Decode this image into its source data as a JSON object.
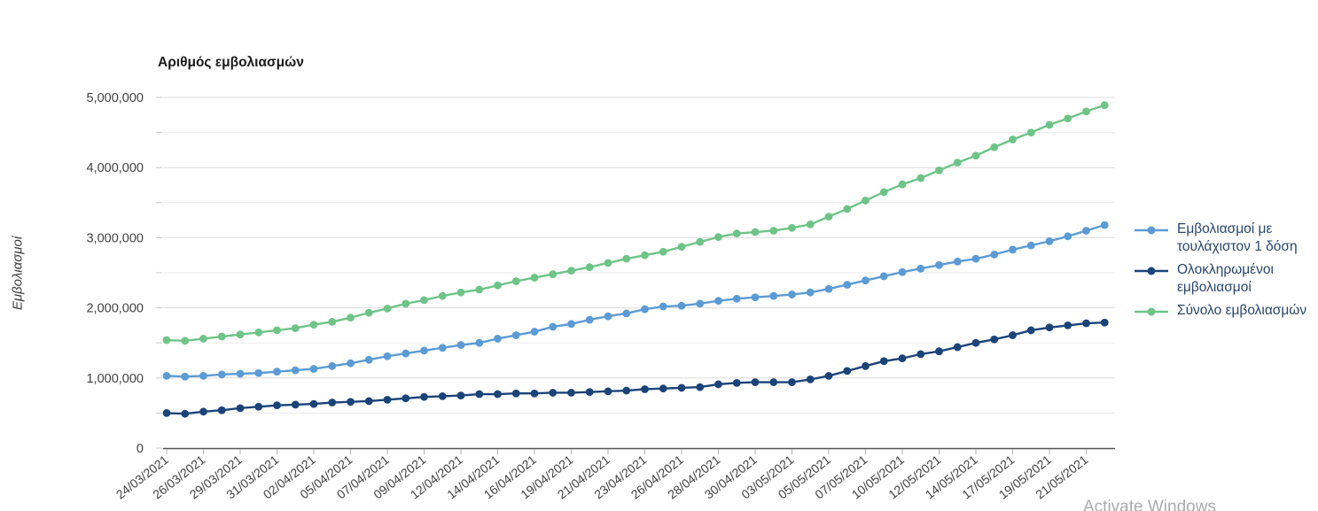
{
  "chart": {
    "title": "Αριθμός εμβολιασμών",
    "y_axis_title": "Εμβολιασμοί",
    "watermark": "Activate Windows"
  },
  "legend": {
    "items": [
      {
        "key": "at_least_one_dose",
        "label": "Εμβολιασμοί με τουλάχιστον 1 δόση",
        "color": "#5b9bd5"
      },
      {
        "key": "completed",
        "label": "Ολοκληρωμένοι εμβολιασμοί",
        "color": "#1a4379"
      },
      {
        "key": "total",
        "label": "Σύνολο εμβολιασμών",
        "color": "#6ec487"
      }
    ]
  },
  "chart_data": {
    "type": "line",
    "title": "Αριθμός εμβολιασμών",
    "xlabel": "",
    "ylabel": "Εμβολιασμοί",
    "ylim": [
      0,
      5000000
    ],
    "y_major_tick_step": 1000000,
    "y_minor_tick_step": 500000,
    "y_tick_labels": [
      "0",
      "1,000,000",
      "2,000,000",
      "3,000,000",
      "4,000,000",
      "5,000,000"
    ],
    "grid": true,
    "legend_position": "right",
    "markers": "circle",
    "points_per_label": 2,
    "x_tick_labels": [
      "24/03/2021",
      "26/03/2021",
      "29/03/2021",
      "31/03/2021",
      "02/04/2021",
      "05/04/2021",
      "07/04/2021",
      "09/04/2021",
      "12/04/2021",
      "14/04/2021",
      "16/04/2021",
      "19/04/2021",
      "21/04/2021",
      "23/04/2021",
      "26/04/2021",
      "28/04/2021",
      "30/04/2021",
      "03/05/2021",
      "05/05/2021",
      "07/05/2021",
      "10/05/2021",
      "12/05/2021",
      "14/05/2021",
      "17/05/2021",
      "19/05/2021",
      "21/05/2021"
    ],
    "series": [
      {
        "name": "Εμβολιασμοί με τουλάχιστον 1 δόση",
        "key": "at_least_one_dose",
        "color": "#5b9bd5",
        "values": [
          1030000,
          1020000,
          1030000,
          1050000,
          1060000,
          1070000,
          1090000,
          1110000,
          1130000,
          1170000,
          1210000,
          1260000,
          1310000,
          1350000,
          1390000,
          1430000,
          1470000,
          1500000,
          1560000,
          1610000,
          1660000,
          1730000,
          1770000,
          1830000,
          1880000,
          1920000,
          1980000,
          2020000,
          2030000,
          2060000,
          2100000,
          2130000,
          2150000,
          2170000,
          2190000,
          2220000,
          2270000,
          2330000,
          2390000,
          2450000,
          2510000,
          2560000,
          2610000,
          2660000,
          2700000,
          2760000,
          2830000,
          2890000,
          2950000,
          3020000,
          3100000,
          3180000
        ]
      },
      {
        "name": "Ολοκληρωμένοι εμβολιασμοί",
        "key": "completed",
        "color": "#1a4379",
        "values": [
          500000,
          490000,
          520000,
          540000,
          570000,
          590000,
          610000,
          620000,
          630000,
          650000,
          660000,
          670000,
          690000,
          710000,
          730000,
          740000,
          750000,
          770000,
          770000,
          780000,
          780000,
          790000,
          790000,
          800000,
          810000,
          820000,
          840000,
          850000,
          860000,
          870000,
          910000,
          930000,
          940000,
          940000,
          940000,
          980000,
          1030000,
          1100000,
          1170000,
          1240000,
          1280000,
          1340000,
          1380000,
          1440000,
          1500000,
          1550000,
          1610000,
          1680000,
          1720000,
          1750000,
          1780000,
          1790000
        ]
      },
      {
        "name": "Σύνολο εμβολιασμών",
        "key": "total",
        "color": "#6ec487",
        "values": [
          1540000,
          1530000,
          1560000,
          1590000,
          1620000,
          1650000,
          1680000,
          1710000,
          1760000,
          1800000,
          1860000,
          1930000,
          1990000,
          2060000,
          2110000,
          2170000,
          2220000,
          2260000,
          2320000,
          2380000,
          2430000,
          2480000,
          2530000,
          2580000,
          2640000,
          2700000,
          2750000,
          2800000,
          2870000,
          2940000,
          3010000,
          3060000,
          3080000,
          3100000,
          3140000,
          3190000,
          3300000,
          3410000,
          3530000,
          3650000,
          3760000,
          3850000,
          3960000,
          4070000,
          4170000,
          4290000,
          4400000,
          4500000,
          4610000,
          4700000,
          4800000,
          4890000
        ]
      }
    ]
  }
}
